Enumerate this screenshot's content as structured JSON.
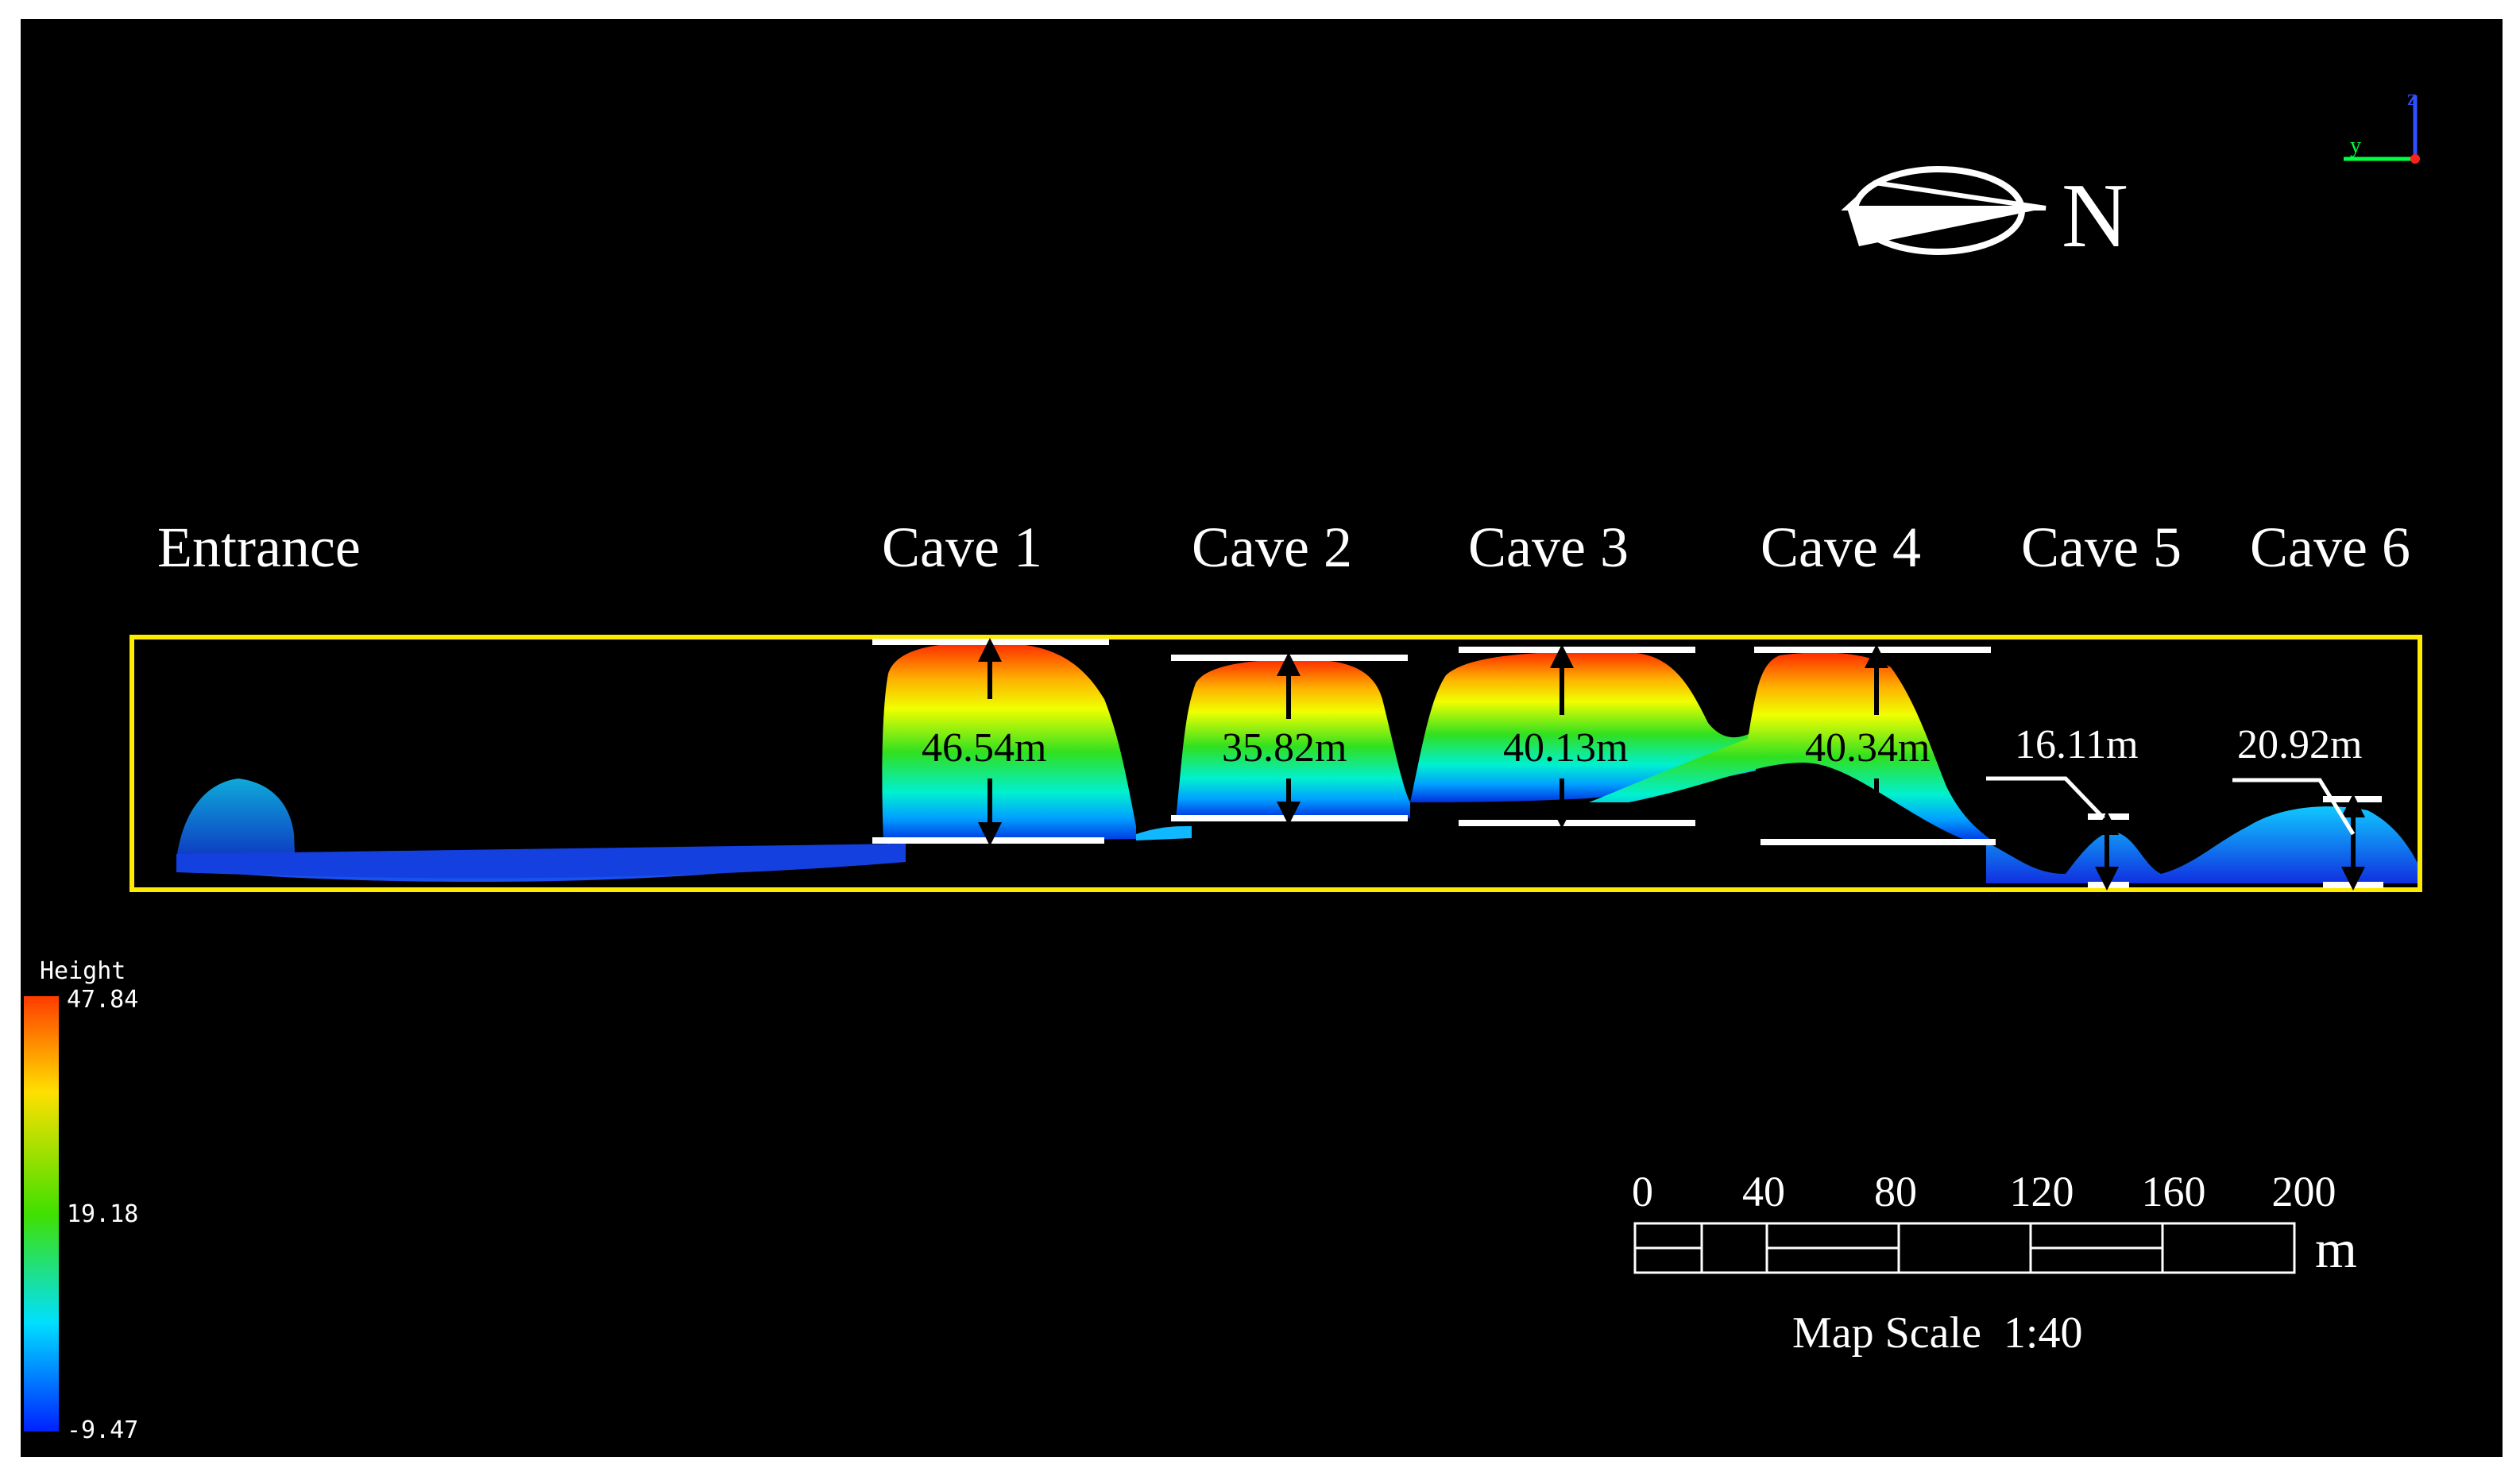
{
  "labels": {
    "entrance": "Entrance",
    "caves": [
      "Cave 1",
      "Cave 2",
      "Cave 3",
      "Cave 4",
      "Cave 5",
      "Cave 6"
    ]
  },
  "measurements": [
    "46.54m",
    "35.82m",
    "40.13m",
    "40.34m",
    "16.11m",
    "20.92m"
  ],
  "compass": {
    "letter": "N"
  },
  "axis_indicator": {
    "y": "y",
    "z": "z"
  },
  "legend": {
    "title": "Height",
    "max": "47.84",
    "mid": "19.18",
    "min": "-9.47",
    "colors": [
      "#ff3b00",
      "#ffe000",
      "#40e000",
      "#00e0ff",
      "#0020ff"
    ]
  },
  "scale_bar": {
    "ticks": [
      "0",
      "40",
      "80",
      "120",
      "160",
      "200"
    ],
    "unit": "m",
    "caption": "Map Scale  1:40"
  },
  "colors": {
    "background": "#000000",
    "frame": "#ffeb00",
    "outer": "#ffffff"
  }
}
